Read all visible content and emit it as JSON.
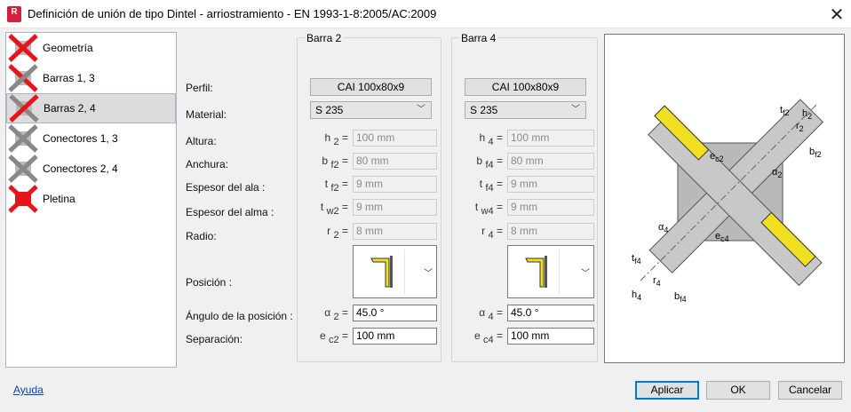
{
  "window": {
    "title": "Definición de unión de tipo Dintel - arriostramiento  - EN 1993-1-8:2005/AC:2009",
    "app_icon": "R",
    "close": "✕"
  },
  "sidebar": {
    "items": [
      {
        "label": "Geometría",
        "icon": "geometry-icon"
      },
      {
        "label": "Barras 1, 3",
        "icon": "bars-13-icon"
      },
      {
        "label": "Barras 2, 4",
        "icon": "bars-24-icon",
        "selected": true
      },
      {
        "label": "Conectores 1, 3",
        "icon": "connectors-13-icon"
      },
      {
        "label": "Conectores 2, 4",
        "icon": "connectors-24-icon"
      },
      {
        "label": "Pletina",
        "icon": "plate-icon"
      }
    ]
  },
  "labels": {
    "perfil": "Perfil:",
    "material": "Material:",
    "altura": "Altura:",
    "anchura": "Anchura:",
    "espesor_ala": "Espesor del ala :",
    "espesor_alma": "Espesor del alma :",
    "radio": "Radio:",
    "posicion": "Posición :",
    "angulo": "Ángulo de la posición :",
    "separacion": "Separación:"
  },
  "bars": [
    {
      "title": "Barra 2",
      "profile": "CAI 100x80x9",
      "material": "S 235",
      "sym": {
        "h": [
          "h",
          "2"
        ],
        "b": [
          "b",
          "f2"
        ],
        "tf": [
          "t",
          "f2"
        ],
        "tw": [
          "t",
          "w2"
        ],
        "r": [
          "r",
          "2"
        ],
        "a": [
          "α",
          "2"
        ],
        "e": [
          "e",
          "c2"
        ]
      },
      "height": "100 mm",
      "width": "80 mm",
      "flange": "9 mm",
      "web": "9 mm",
      "radius": "8 mm",
      "angle": "45.0 °",
      "separation": "100 mm"
    },
    {
      "title": "Barra 4",
      "profile": "CAI 100x80x9",
      "material": "S 235",
      "sym": {
        "h": [
          "h",
          "4"
        ],
        "b": [
          "b",
          "f4"
        ],
        "tf": [
          "t",
          "f4"
        ],
        "tw": [
          "t",
          "w4"
        ],
        "r": [
          "r",
          "4"
        ],
        "a": [
          "α",
          "4"
        ],
        "e": [
          "e",
          "c4"
        ]
      },
      "height": "100 mm",
      "width": "80 mm",
      "flange": "9 mm",
      "web": "9 mm",
      "radius": "8 mm",
      "angle": "45.0 °",
      "separation": "100 mm"
    }
  ],
  "equals": "=",
  "diagram": {
    "labels": [
      "t",
      "f2",
      "h",
      "2",
      "r",
      "2",
      "b",
      "f2",
      "e",
      "c2",
      "α",
      "2",
      "α",
      "4",
      "e",
      "c4",
      "t",
      "f4",
      "r",
      "4",
      "h",
      "4",
      "b",
      "f4"
    ]
  },
  "footer": {
    "help": "Ayuda",
    "apply": "Aplicar",
    "ok": "OK",
    "cancel": "Cancelar"
  },
  "colors": {
    "accent": "#0078d7",
    "member_yellow": "#f0e020",
    "icon_red": "#e8141c"
  }
}
